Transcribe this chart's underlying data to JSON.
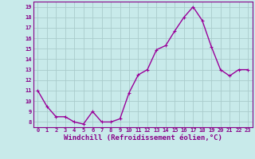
{
  "x": [
    0,
    1,
    2,
    3,
    4,
    5,
    6,
    7,
    8,
    9,
    10,
    11,
    12,
    13,
    14,
    15,
    16,
    17,
    18,
    19,
    20,
    21,
    22,
    23
  ],
  "y": [
    11,
    9.5,
    8.5,
    8.5,
    8,
    7.8,
    9,
    8,
    8,
    8.3,
    10.8,
    12.5,
    13,
    14.9,
    15.3,
    16.7,
    18,
    19,
    17.7,
    15.2,
    13,
    12.4,
    13,
    13
  ],
  "line_color": "#990099",
  "marker": "+",
  "marker_size": 3,
  "linewidth": 1.0,
  "bg_color": "#c8eaea",
  "grid_color": "#aacccc",
  "xlabel": "Windchill (Refroidissement éolien,°C)",
  "xlim": [
    -0.5,
    23.5
  ],
  "ylim": [
    7.5,
    19.5
  ],
  "yticks": [
    8,
    9,
    10,
    11,
    12,
    13,
    14,
    15,
    16,
    17,
    18,
    19
  ],
  "xticks": [
    0,
    1,
    2,
    3,
    4,
    5,
    6,
    7,
    8,
    9,
    10,
    11,
    12,
    13,
    14,
    15,
    16,
    17,
    18,
    19,
    20,
    21,
    22,
    23
  ],
  "tick_label_fontsize": 5,
  "xlabel_fontsize": 6.5,
  "axis_label_color": "#880088",
  "tick_color": "#880088",
  "spine_color": "#880088"
}
